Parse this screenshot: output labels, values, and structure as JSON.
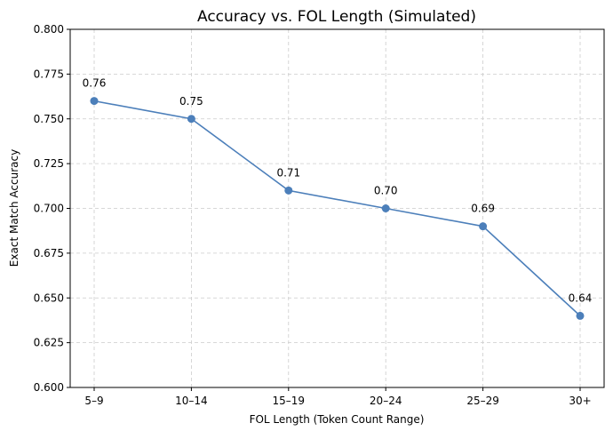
{
  "chart_data": {
    "type": "line",
    "title": "Accuracy vs. FOL Length (Simulated)",
    "xlabel": "FOL Length (Token Count Range)",
    "ylabel": "Exact Match Accuracy",
    "categories": [
      "5–9",
      "10–14",
      "15–19",
      "20–24",
      "25–29",
      "30+"
    ],
    "values": [
      0.76,
      0.75,
      0.71,
      0.7,
      0.69,
      0.64
    ],
    "data_labels": [
      "0.76",
      "0.75",
      "0.71",
      "0.70",
      "0.69",
      "0.64"
    ],
    "ylim": [
      0.6,
      0.8
    ],
    "yticks": [
      0.6,
      0.625,
      0.65,
      0.675,
      0.7,
      0.725,
      0.75,
      0.775,
      0.8
    ],
    "ytick_labels": [
      "0.600",
      "0.625",
      "0.650",
      "0.675",
      "0.700",
      "0.725",
      "0.750",
      "0.775",
      "0.800"
    ],
    "grid": true,
    "legend": "none",
    "line_color": "#4c7fba",
    "grid_color": "#cccccc"
  }
}
